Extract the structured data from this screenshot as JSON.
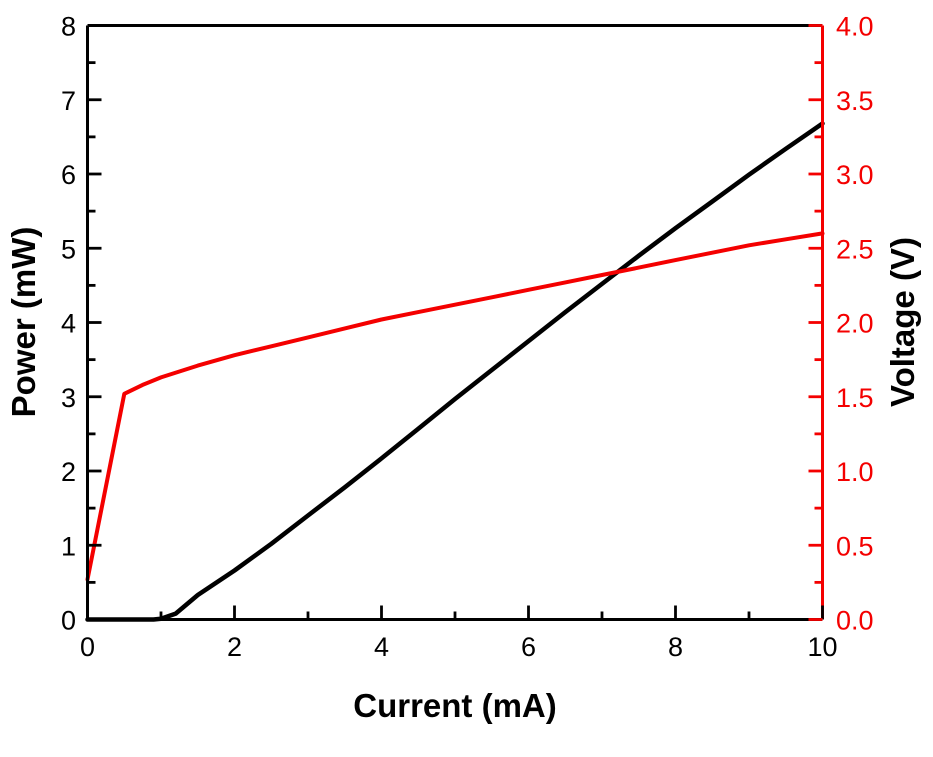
{
  "figure": {
    "background": "#ffffff",
    "axis_color_left": "#000000",
    "axis_color_bottom": "#000000",
    "axis_color_right": "#f40000",
    "x_axis_title": "Current (mA)",
    "y_left_axis_title": "Power (mW)",
    "y_right_axis_title": "Voltage (V)"
  },
  "chart_data": {
    "type": "line",
    "title": "",
    "xlabel": "Current (mA)",
    "ylabel_left": "Power (mW)",
    "ylabel_right": "Voltage (V)",
    "xlim": [
      0,
      10
    ],
    "ylim_left": [
      0,
      8
    ],
    "ylim_right": [
      0,
      4
    ],
    "grid": false,
    "legend": "none",
    "tick_direction": "in",
    "axes": {
      "x": {
        "major_step": 2,
        "minor_step": 1,
        "tick_labels": [
          "0",
          "2",
          "4",
          "6",
          "8",
          "10"
        ],
        "color": "#000000"
      },
      "y_left": {
        "major_step": 1,
        "minor_step": 0.5,
        "tick_labels": [
          "0",
          "1",
          "2",
          "3",
          "4",
          "5",
          "6",
          "7",
          "8"
        ],
        "color": "#000000"
      },
      "y_right": {
        "major_step": 0.5,
        "minor_step": 0.25,
        "tick_labels": [
          "0.0",
          "0.5",
          "1.0",
          "1.5",
          "2.0",
          "2.5",
          "3.0",
          "3.5",
          "4.0"
        ],
        "color": "#f40000"
      }
    },
    "series": [
      {
        "name": "Power (mW)",
        "axis": "left",
        "color": "#000000",
        "x": [
          0,
          0.9,
          1.0,
          1.2,
          1.5,
          2.0,
          2.5,
          3.0,
          3.5,
          4.0,
          4.5,
          5.0,
          5.5,
          6.0,
          6.5,
          7.0,
          7.5,
          8.0,
          8.5,
          9.0,
          9.5,
          10.0
        ],
        "y": [
          0,
          0.0,
          0.01,
          0.08,
          0.33,
          0.66,
          1.02,
          1.4,
          1.78,
          2.17,
          2.57,
          2.97,
          3.36,
          3.75,
          4.14,
          4.52,
          4.9,
          5.27,
          5.63,
          5.99,
          6.34,
          6.68
        ]
      },
      {
        "name": "Voltage (V)",
        "axis": "right",
        "color": "#f40000",
        "x": [
          0,
          0.5,
          0.75,
          1.0,
          1.5,
          2.0,
          2.5,
          3.0,
          3.5,
          4.0,
          4.5,
          5.0,
          5.5,
          6.0,
          6.5,
          7.0,
          7.5,
          8.0,
          8.5,
          9.0,
          9.5,
          10.0
        ],
        "y": [
          0.27,
          1.52,
          1.58,
          1.63,
          1.71,
          1.78,
          1.84,
          1.9,
          1.96,
          2.02,
          2.07,
          2.12,
          2.17,
          2.22,
          2.27,
          2.32,
          2.37,
          2.42,
          2.47,
          2.52,
          2.56,
          2.6
        ]
      }
    ]
  }
}
